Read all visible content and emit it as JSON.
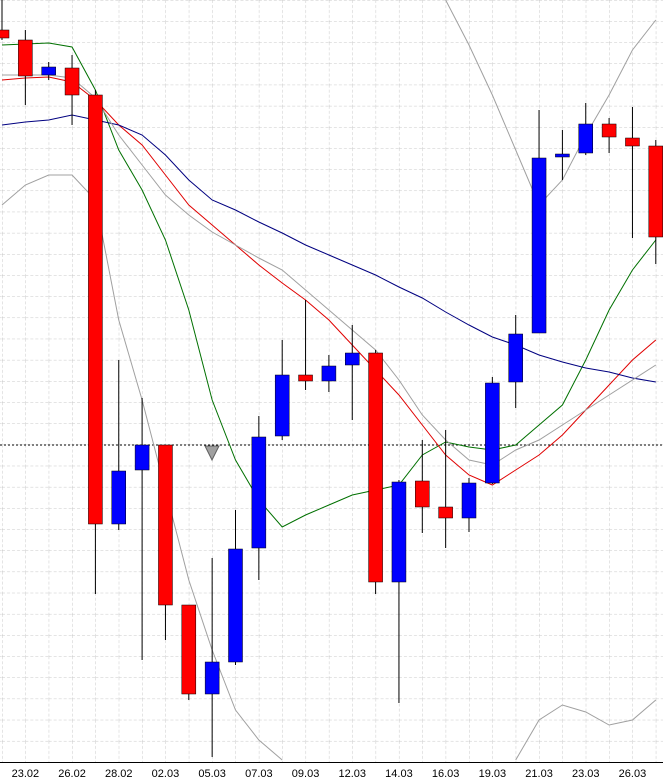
{
  "chart_data": {
    "type": "candlestick",
    "categories": [
      null,
      "23.02",
      null,
      "26.02",
      null,
      "28.02",
      null,
      "02.03",
      null,
      "05.03",
      null,
      "07.03",
      null,
      "09.03",
      null,
      "12.03",
      null,
      "14.03",
      null,
      "16.03",
      null,
      "19.03",
      null,
      "21.03",
      null,
      "23.03",
      null,
      "26.03",
      null
    ],
    "open": [
      732,
      722,
      687,
      694,
      667,
      238,
      292,
      317,
      157,
      68,
      100,
      214,
      326,
      387,
      381,
      397,
      409,
      180,
      281,
      255,
      244,
      279,
      380,
      429,
      605,
      609,
      638,
      624,
      616
    ],
    "high": [
      762,
      732,
      700,
      707,
      672,
      402,
      364,
      317,
      157,
      204,
      252,
      346,
      422,
      462,
      407,
      437,
      412,
      282,
      322,
      332,
      284,
      385,
      447,
      652,
      632,
      659,
      644,
      655,
      622
    ],
    "low": [
      722,
      657,
      682,
      637,
      168,
      232,
      102,
      122,
      62,
      5,
      97,
      182,
      322,
      372,
      370,
      342,
      168,
      59,
      229,
      214,
      230,
      278,
      354,
      429,
      582,
      607,
      609,
      524,
      498
    ],
    "close": [
      724,
      686,
      695,
      667,
      238,
      291,
      317,
      157,
      68,
      100,
      213,
      325,
      387,
      381,
      396,
      409,
      180,
      280,
      255,
      244,
      279,
      379,
      428,
      604,
      608,
      638,
      625,
      616,
      525
    ],
    "up_color": "#0000ff",
    "down_color": "#ff0000",
    "overlays": [
      {
        "color": "#007000",
        "values": [
          717,
          718,
          719,
          715,
          672,
          612,
          572,
          522,
          452,
          362,
          302,
          262,
          235,
          247,
          257,
          267,
          272,
          277,
          307,
          320,
          315,
          312,
          317,
          337,
          357,
          402,
          452,
          492,
          522
        ]
      },
      {
        "color": "#e00000",
        "values": [
          682,
          684,
          685,
          680,
          662,
          637,
          617,
          587,
          557,
          537,
          517,
          497,
          479,
          462,
          442,
          417,
          392,
          367,
          337,
          307,
          287,
          277,
          292,
          307,
          327,
          352,
          377,
          402,
          422
        ]
      },
      {
        "color": "#000080",
        "values": [
          637,
          640,
          642,
          647,
          642,
          637,
          627,
          607,
          582,
          562,
          552,
          540,
          529,
          517,
          507,
          497,
          487,
          475,
          464,
          450,
          437,
          425,
          417,
          407,
          400,
          394,
          390,
          384,
          380
        ]
      },
      {
        "color": "#a0a0a0",
        "values": [
          687,
          687,
          687,
          684,
          664,
          627,
          597,
          567,
          547,
          530,
          517,
          504,
          492,
          472,
          452,
          432,
          412,
          382,
          347,
          322,
          302,
          297,
          312,
          322,
          337,
          352,
          367,
          382,
          397
        ]
      },
      {
        "color": "#a0a0a0",
        "values": [
          null,
          null,
          null,
          null,
          null,
          null,
          null,
          null,
          null,
          null,
          null,
          null,
          null,
          null,
          null,
          null,
          null,
          null,
          null,
          762,
          717,
          667,
          612,
          557,
          582,
          627,
          667,
          712,
          742
        ]
      },
      {
        "color": "#a0a0a0",
        "values": [
          557,
          577,
          587,
          587,
          562,
          442,
          362,
          272,
          182,
          112,
          52,
          22,
          2,
          null,
          null,
          null,
          null,
          null,
          null,
          null,
          null,
          null,
          2,
          42,
          57,
          50,
          37,
          42,
          62
        ]
      }
    ],
    "ylim": [
      0,
      762
    ],
    "grid": true
  }
}
